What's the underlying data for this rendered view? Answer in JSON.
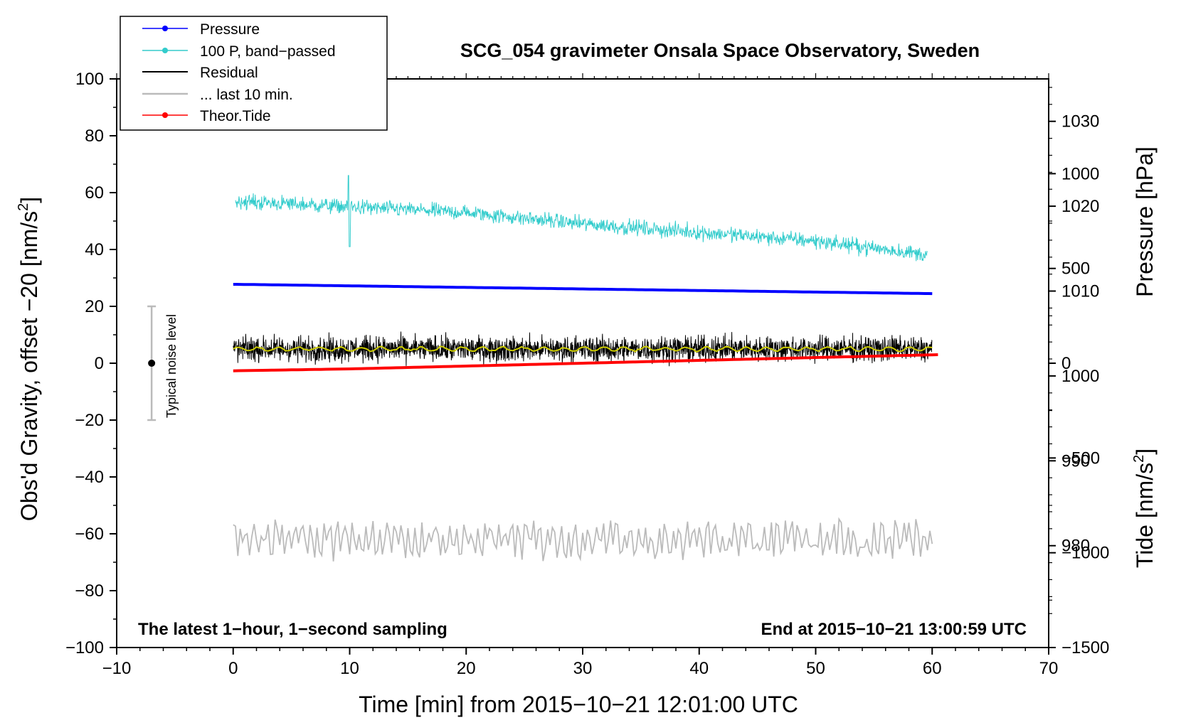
{
  "chart_data": {
    "type": "line",
    "title": "SCG_054 gravimeter Onsala Space Observatory, Sweden",
    "xlabel": "Time [min] from 2015−10−21 12:01:00 UTC",
    "ylabel_left": "Obs'd Gravity, offset −20 [nm/s",
    "ylabel_left_sup": "2",
    "ylabel_left_close": "]",
    "ylabel_right_pressure": "Pressure [hPa]",
    "ylabel_right_tide": "Tide [nm/s",
    "ylabel_right_tide_sup": "2",
    "ylabel_right_tide_close": "]",
    "note_left": "The latest 1−hour, 1−second sampling",
    "note_right": "End at 2015−10−21 13:00:59 UTC",
    "noise_label": "Typical noise level",
    "noise_bar": {
      "x": -7,
      "center": 0,
      "low": -20,
      "high": 20
    },
    "xlim": [
      -10,
      70
    ],
    "ylim_left": [
      -100,
      100
    ],
    "pressure_ylim": [
      968,
      1035
    ],
    "tide_ylim": [
      -1500,
      1500
    ],
    "x_ticks": [
      {
        "value": -10,
        "label": "−10"
      },
      {
        "value": 0,
        "label": "0"
      },
      {
        "value": 10,
        "label": "10"
      },
      {
        "value": 20,
        "label": "20"
      },
      {
        "value": 30,
        "label": "30"
      },
      {
        "value": 40,
        "label": "40"
      },
      {
        "value": 50,
        "label": "50"
      },
      {
        "value": 60,
        "label": "60"
      },
      {
        "value": 70,
        "label": "70"
      }
    ],
    "y_ticks_left": [
      {
        "value": 100,
        "label": "100"
      },
      {
        "value": 80,
        "label": "80"
      },
      {
        "value": 60,
        "label": "60"
      },
      {
        "value": 40,
        "label": "40"
      },
      {
        "value": 20,
        "label": "20"
      },
      {
        "value": 0,
        "label": "0"
      },
      {
        "value": -20,
        "label": "−20"
      },
      {
        "value": -40,
        "label": "−40"
      },
      {
        "value": -60,
        "label": "−60"
      },
      {
        "value": -80,
        "label": "−80"
      },
      {
        "value": -100,
        "label": "−100"
      }
    ],
    "pressure_ticks": [
      {
        "value": 1030,
        "label": "1030"
      },
      {
        "value": 1020,
        "label": "1020"
      },
      {
        "value": 1010,
        "label": "1010"
      },
      {
        "value": 1000,
        "label": "1000"
      },
      {
        "value": 990,
        "label": "990"
      },
      {
        "value": 980,
        "label": "980"
      }
    ],
    "tide_ticks": [
      {
        "value": 1000,
        "label": "1000"
      },
      {
        "value": 500,
        "label": "500"
      },
      {
        "value": 0,
        "label": "0"
      },
      {
        "value": -500,
        "label": "−500"
      },
      {
        "value": -1000,
        "label": "−1000"
      },
      {
        "value": -1500,
        "label": "−1500"
      }
    ],
    "legend": {
      "placement": "top-left",
      "entries": [
        {
          "label": "Pressure",
          "color": "#0000ff",
          "marker": true
        },
        {
          "label": "100 P, band−passed",
          "color": "#33cccc",
          "marker": true
        },
        {
          "label": "Residual",
          "color": "#000000",
          "marker": false
        },
        {
          "label": "... last 10 min.",
          "color": "#bbbbbb",
          "marker": false
        },
        {
          "label": "Theor.Tide",
          "color": "#ff0000",
          "marker": true
        }
      ]
    },
    "series": [
      {
        "name": "Pressure",
        "color": "#0000ff",
        "axis": "pressure",
        "x": [
          0,
          60
        ],
        "values": [
          1010.8,
          1009.7
        ]
      },
      {
        "name": "100 P, band−passed",
        "color": "#33cccc",
        "axis": "left",
        "x": [
          0,
          10,
          20,
          30,
          40,
          50,
          60
        ],
        "values": [
          57,
          55,
          53,
          49,
          46,
          43,
          38
        ]
      },
      {
        "name": "Residual",
        "color": "#000000",
        "axis": "left",
        "x": [
          0,
          60
        ],
        "values": [
          5,
          5
        ]
      },
      {
        "name": "... last 10 min.",
        "color": "#bbbbbb",
        "axis": "left",
        "x": [
          0,
          60
        ],
        "values": [
          -62,
          -62
        ]
      },
      {
        "name": "Theor.Tide",
        "color": "#ff0000",
        "axis": "tide",
        "x": [
          0,
          10,
          20,
          30,
          40,
          50,
          60.5
        ],
        "values": [
          -40,
          -30,
          -15,
          0,
          15,
          30,
          45
        ]
      }
    ]
  }
}
